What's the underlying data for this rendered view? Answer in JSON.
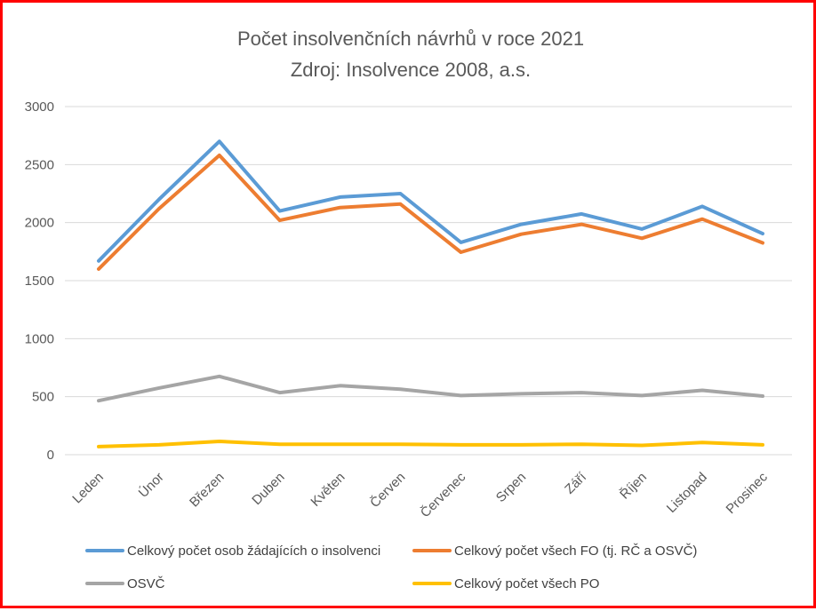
{
  "chart_data": {
    "type": "line",
    "title": "Počet insolvenčních návrhů v roce 2021",
    "subtitle": "Zdroj: Insolvence 2008, a.s.",
    "xlabel": "",
    "ylabel": "",
    "ylim": [
      0,
      3000
    ],
    "yticks": [
      "0",
      "500",
      "1000",
      "1500",
      "2000",
      "2500",
      "3000"
    ],
    "grid": true,
    "legend_position": "bottom",
    "categories": [
      "Leden",
      "Únor",
      "Březen",
      "Duben",
      "Květen",
      "Červen",
      "Červenec",
      "Srpen",
      "Září",
      "Říjen",
      "Listopad",
      "Prosinec"
    ],
    "series": [
      {
        "name": "Celkový počet osob žádajících o insolvenci",
        "color": "#5b9bd5",
        "values": [
          1670,
          2200,
          2700,
          2100,
          2220,
          2250,
          1830,
          1985,
          2075,
          1945,
          2140,
          1905
        ]
      },
      {
        "name": "Celkový počet všech FO (tj. RČ a OSVČ)",
        "color": "#ed7d31",
        "values": [
          1600,
          2120,
          2580,
          2020,
          2130,
          2160,
          1745,
          1900,
          1985,
          1865,
          2030,
          1825
        ]
      },
      {
        "name": "OSVČ",
        "color": "#a5a5a5",
        "values": [
          465,
          575,
          675,
          535,
          595,
          565,
          510,
          525,
          535,
          510,
          555,
          505
        ]
      },
      {
        "name": "Celkový počet všech PO",
        "color": "#ffc000",
        "values": [
          70,
          85,
          115,
          90,
          90,
          90,
          85,
          85,
          90,
          80,
          105,
          85
        ]
      }
    ]
  }
}
